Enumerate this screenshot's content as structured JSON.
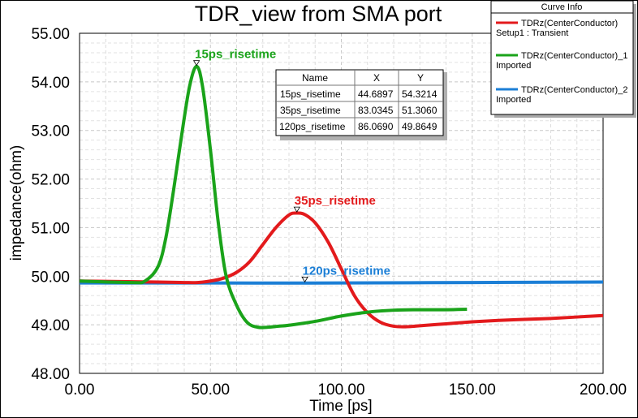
{
  "chart_data": {
    "type": "line",
    "title": "TDR_view from SMA port",
    "xlabel": "Time [ps]",
    "ylabel": "impedance(ohm)",
    "xlim": [
      0,
      200
    ],
    "ylim": [
      48,
      55
    ],
    "x_ticks": [
      "0.00",
      "50.00",
      "100.00",
      "150.00",
      "200.00"
    ],
    "y_ticks": [
      "48.00",
      "49.00",
      "50.00",
      "51.00",
      "52.00",
      "53.00",
      "54.00",
      "55.00"
    ],
    "grid": true,
    "legend": {
      "title": "Curve Info",
      "placement": "top-right",
      "entries": [
        {
          "line1": "TDRz(CenterConductor)",
          "line2": "Setup1 : Transient",
          "color": "#e31a1c"
        },
        {
          "line1": "TDRz(CenterConductor)_1",
          "line2": "Imported",
          "color": "#1aa31a"
        },
        {
          "line1": "TDRz(CenterConductor)_2",
          "line2": "Imported",
          "color": "#1c7fd6"
        }
      ]
    },
    "series": [
      {
        "color": "#e31a1c",
        "x": [
          0,
          30,
          40,
          45,
          50,
          55,
          60,
          65,
          70,
          75,
          80,
          83,
          86,
          90,
          95,
          100,
          105,
          110,
          115,
          120,
          125,
          130,
          140,
          150,
          160,
          170,
          180,
          190,
          200
        ],
        "y": [
          49.9,
          49.88,
          49.87,
          49.87,
          49.9,
          49.96,
          50.08,
          50.3,
          50.65,
          51.0,
          51.26,
          51.3,
          51.27,
          51.1,
          50.7,
          50.15,
          49.6,
          49.25,
          49.05,
          48.97,
          48.96,
          48.98,
          49.02,
          49.06,
          49.09,
          49.11,
          49.13,
          49.16,
          49.19
        ]
      },
      {
        "color": "#1aa31a",
        "x": [
          0,
          20,
          25,
          30,
          33,
          36,
          39,
          42,
          44.69,
          47,
          50,
          53,
          56,
          60,
          64,
          68,
          72,
          76,
          80,
          90,
          100,
          110,
          120,
          130,
          140,
          148
        ],
        "y": [
          49.9,
          49.87,
          49.9,
          50.2,
          50.8,
          51.8,
          52.9,
          53.9,
          54.32,
          53.9,
          52.6,
          51.1,
          50.0,
          49.4,
          49.05,
          48.95,
          48.95,
          48.97,
          48.99,
          49.07,
          49.18,
          49.26,
          49.3,
          49.31,
          49.31,
          49.32
        ]
      },
      {
        "color": "#1c7fd6",
        "x": [
          0,
          50,
          100,
          150,
          200
        ],
        "y": [
          49.86,
          49.86,
          49.86,
          49.87,
          49.88
        ]
      }
    ],
    "markers": [
      {
        "name": "15ps_risetime",
        "x": 44.6897,
        "y": 54.3214,
        "color": "#1aa31a"
      },
      {
        "name": "35ps_risetime",
        "x": 83.0345,
        "y": 51.306,
        "color": "#e31a1c"
      },
      {
        "name": "120ps_risetime",
        "x": 86.069,
        "y": 49.8649,
        "color": "#1c7fd6"
      }
    ],
    "marker_table": {
      "headers": [
        "Name",
        "X",
        "Y"
      ],
      "rows": [
        [
          "15ps_risetime",
          "44.6897",
          "54.3214"
        ],
        [
          "35ps_risetime",
          "83.0345",
          "51.3060"
        ],
        [
          "120ps_risetime",
          "86.0690",
          "49.8649"
        ]
      ]
    }
  }
}
